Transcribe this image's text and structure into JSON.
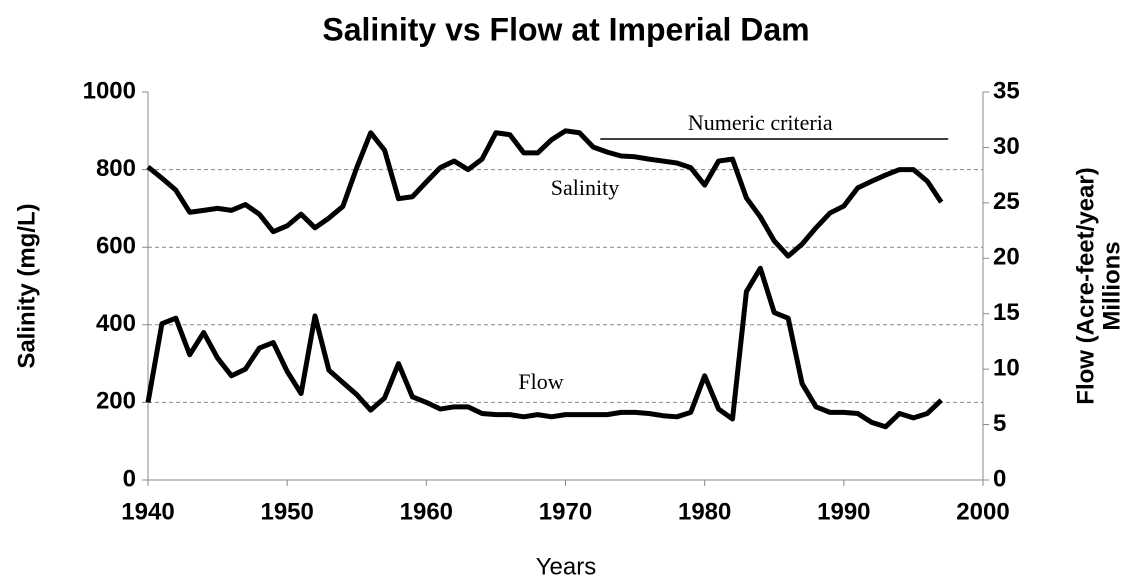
{
  "chart_data": {
    "type": "line",
    "title": "Salinity vs Flow at Imperial Dam",
    "xlabel": "Years",
    "ylabel": "Salinity (mg/L)",
    "y2label": [
      "Flow (Acre-feet/year)",
      "Millions"
    ],
    "x": [
      1940,
      1941,
      1942,
      1943,
      1944,
      1945,
      1946,
      1947,
      1948,
      1949,
      1950,
      1951,
      1952,
      1953,
      1954,
      1955,
      1956,
      1957,
      1958,
      1959,
      1960,
      1961,
      1962,
      1963,
      1964,
      1965,
      1966,
      1967,
      1968,
      1969,
      1970,
      1971,
      1972,
      1973,
      1974,
      1975,
      1976,
      1977,
      1978,
      1979,
      1980,
      1981,
      1982,
      1983,
      1984,
      1985,
      1986,
      1987,
      1988,
      1989,
      1990,
      1991,
      1992,
      1993,
      1994,
      1995,
      1996,
      1997
    ],
    "series": [
      {
        "name": "Salinity",
        "color": "#000000",
        "axis": "y",
        "values": [
          807,
          778,
          747,
          690,
          695,
          700,
          695,
          710,
          685,
          640,
          655,
          685,
          650,
          675,
          705,
          805,
          895,
          850,
          725,
          730,
          768,
          805,
          822,
          800,
          827,
          895,
          890,
          843,
          843,
          877,
          900,
          895,
          858,
          845,
          835,
          833,
          827,
          822,
          817,
          805,
          760,
          822,
          827,
          727,
          678,
          616,
          577,
          608,
          650,
          688,
          706,
          753,
          770,
          786,
          800,
          800,
          770,
          716
        ]
      },
      {
        "name": "Flow",
        "color": "#000000",
        "axis": "y2",
        "values": [
          7.0,
          14.1,
          14.6,
          11.3,
          13.3,
          11.0,
          9.4,
          10.0,
          11.9,
          12.4,
          9.8,
          7.8,
          14.8,
          9.9,
          8.8,
          7.7,
          6.3,
          7.4,
          10.5,
          7.5,
          7.0,
          6.4,
          6.6,
          6.6,
          6.0,
          5.9,
          5.9,
          5.7,
          5.9,
          5.7,
          5.9,
          5.9,
          5.9,
          5.9,
          6.1,
          6.1,
          6.0,
          5.8,
          5.7,
          6.1,
          9.4,
          6.4,
          5.5,
          17.0,
          19.1,
          15.1,
          14.6,
          8.7,
          6.6,
          6.1,
          6.1,
          6.0,
          5.2,
          4.8,
          6.0,
          5.6,
          6.0,
          7.2
        ]
      }
    ],
    "annotations": [
      {
        "text": "Numeric criteria",
        "value": 879,
        "x": [
          1972.5,
          1997.5
        ]
      }
    ],
    "xlim": [
      1940,
      2000
    ],
    "xticks": [
      1940,
      1950,
      1960,
      1970,
      1980,
      1990,
      2000
    ],
    "ylim": [
      0,
      1000
    ],
    "yticks": [
      0,
      200,
      400,
      600,
      800,
      1000
    ],
    "y2lim": [
      0,
      35
    ],
    "y2ticks": [
      0,
      5,
      10,
      15,
      20,
      25,
      30,
      35
    ],
    "grid": true
  }
}
